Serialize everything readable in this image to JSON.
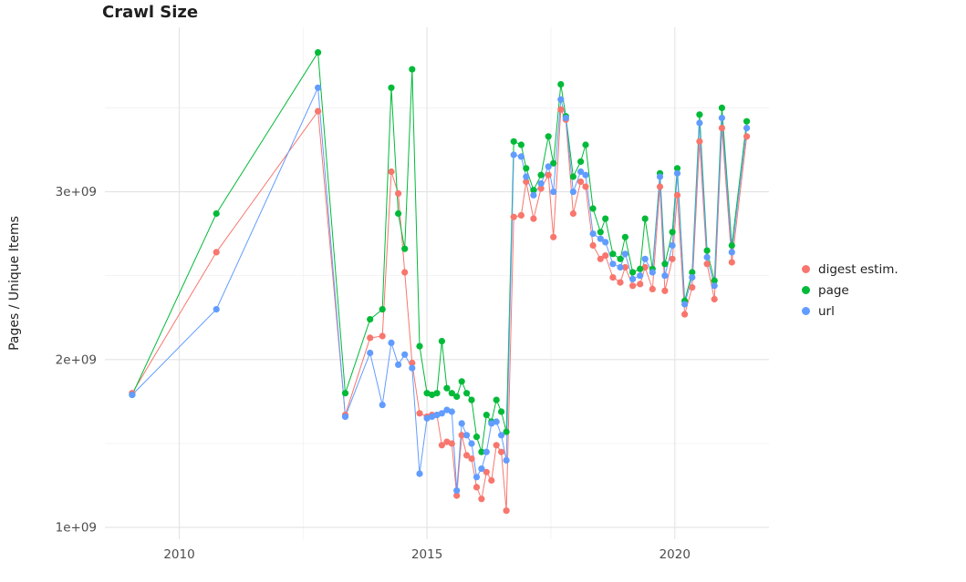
{
  "chart_data": {
    "type": "line",
    "title": "Crawl Size",
    "xlabel": "",
    "ylabel": "Pages / Unique Items",
    "xlim": [
      2008.5,
      2021.9
    ],
    "ylim": [
      930000000.0,
      3980000000.0
    ],
    "grid": true,
    "legend_position": "right",
    "x_ticks": [
      {
        "value": 2010,
        "label": "2010"
      },
      {
        "value": 2015,
        "label": "2015"
      },
      {
        "value": 2020,
        "label": "2020"
      }
    ],
    "y_ticks": [
      {
        "value": 1000000000.0,
        "label": "1e+09"
      },
      {
        "value": 2000000000.0,
        "label": "2e+09"
      },
      {
        "value": 3000000000.0,
        "label": "3e+09"
      }
    ],
    "x_minor": [
      2012.5,
      2017.5
    ],
    "y_minor": [
      1500000000.0,
      2500000000.0,
      3500000000.0
    ],
    "x": [
      2009.05,
      2010.75,
      2012.8,
      2013.35,
      2013.85,
      2014.1,
      2014.28,
      2014.42,
      2014.55,
      2014.7,
      2014.85,
      2015.0,
      2015.1,
      2015.2,
      2015.3,
      2015.4,
      2015.5,
      2015.6,
      2015.7,
      2015.8,
      2015.9,
      2016.0,
      2016.1,
      2016.2,
      2016.3,
      2016.4,
      2016.5,
      2016.6,
      2016.75,
      2016.9,
      2017.0,
      2017.15,
      2017.3,
      2017.45,
      2017.55,
      2017.7,
      2017.8,
      2017.95,
      2018.1,
      2018.2,
      2018.35,
      2018.5,
      2018.6,
      2018.75,
      2018.9,
      2019.0,
      2019.15,
      2019.3,
      2019.4,
      2019.55,
      2019.7,
      2019.8,
      2019.95,
      2020.05,
      2020.2,
      2020.35,
      2020.5,
      2020.65,
      2020.8,
      2020.95,
      2021.15,
      2021.45
    ],
    "series": [
      {
        "name": "digest estim.",
        "color": "#F8766D",
        "values": [
          1800000000.0,
          2640000000.0,
          3480000000.0,
          1670000000.0,
          2130000000.0,
          2140000000.0,
          3120000000.0,
          2990000000.0,
          2520000000.0,
          1980000000.0,
          1680000000.0,
          1660000000.0,
          1670000000.0,
          1670000000.0,
          1490000000.0,
          1510000000.0,
          1500000000.0,
          1190000000.0,
          1550000000.0,
          1430000000.0,
          1410000000.0,
          1240000000.0,
          1170000000.0,
          1330000000.0,
          1280000000.0,
          1490000000.0,
          1450000000.0,
          1100000000.0,
          2850000000.0,
          2860000000.0,
          3060000000.0,
          2840000000.0,
          3020000000.0,
          3100000000.0,
          2730000000.0,
          3490000000.0,
          3430000000.0,
          2870000000.0,
          3060000000.0,
          3030000000.0,
          2680000000.0,
          2600000000.0,
          2620000000.0,
          2490000000.0,
          2460000000.0,
          2550000000.0,
          2440000000.0,
          2450000000.0,
          2550000000.0,
          2420000000.0,
          3030000000.0,
          2410000000.0,
          2600000000.0,
          2980000000.0,
          2270000000.0,
          2430000000.0,
          3300000000.0,
          2570000000.0,
          2360000000.0,
          3380000000.0,
          2580000000.0,
          3330000000.0
        ]
      },
      {
        "name": "page",
        "color": "#00BA38",
        "values": [
          1790000000.0,
          2870000000.0,
          3830000000.0,
          1800000000.0,
          2240000000.0,
          2300000000.0,
          3620000000.0,
          2870000000.0,
          2660000000.0,
          3730000000.0,
          2080000000.0,
          1800000000.0,
          1790000000.0,
          1800000000.0,
          2110000000.0,
          1830000000.0,
          1800000000.0,
          1780000000.0,
          1870000000.0,
          1800000000.0,
          1760000000.0,
          1540000000.0,
          1450000000.0,
          1670000000.0,
          1630000000.0,
          1760000000.0,
          1690000000.0,
          1570000000.0,
          3300000000.0,
          3280000000.0,
          3140000000.0,
          3010000000.0,
          3100000000.0,
          3330000000.0,
          3170000000.0,
          3640000000.0,
          3450000000.0,
          3090000000.0,
          3180000000.0,
          3280000000.0,
          2900000000.0,
          2760000000.0,
          2840000000.0,
          2630000000.0,
          2600000000.0,
          2730000000.0,
          2520000000.0,
          2540000000.0,
          2840000000.0,
          2540000000.0,
          3110000000.0,
          2570000000.0,
          2760000000.0,
          3140000000.0,
          2350000000.0,
          2520000000.0,
          3460000000.0,
          2650000000.0,
          2470000000.0,
          3500000000.0,
          2680000000.0,
          3420000000.0
        ]
      },
      {
        "name": "url",
        "color": "#619CFF",
        "values": [
          1790000000.0,
          2300000000.0,
          3620000000.0,
          1660000000.0,
          2040000000.0,
          1730000000.0,
          2100000000.0,
          1970000000.0,
          2030000000.0,
          1950000000.0,
          1320000000.0,
          1650000000.0,
          1660000000.0,
          1670000000.0,
          1680000000.0,
          1700000000.0,
          1690000000.0,
          1220000000.0,
          1620000000.0,
          1550000000.0,
          1500000000.0,
          1300000000.0,
          1350000000.0,
          1450000000.0,
          1620000000.0,
          1630000000.0,
          1550000000.0,
          1400000000.0,
          3220000000.0,
          3210000000.0,
          3090000000.0,
          2980000000.0,
          3050000000.0,
          3150000000.0,
          3000000000.0,
          3550000000.0,
          3440000000.0,
          3000000000.0,
          3120000000.0,
          3100000000.0,
          2750000000.0,
          2720000000.0,
          2700000000.0,
          2570000000.0,
          2550000000.0,
          2630000000.0,
          2480000000.0,
          2500000000.0,
          2600000000.0,
          2520000000.0,
          3090000000.0,
          2500000000.0,
          2680000000.0,
          3110000000.0,
          2330000000.0,
          2490000000.0,
          3410000000.0,
          2610000000.0,
          2440000000.0,
          3440000000.0,
          2640000000.0,
          3380000000.0
        ]
      }
    ]
  }
}
